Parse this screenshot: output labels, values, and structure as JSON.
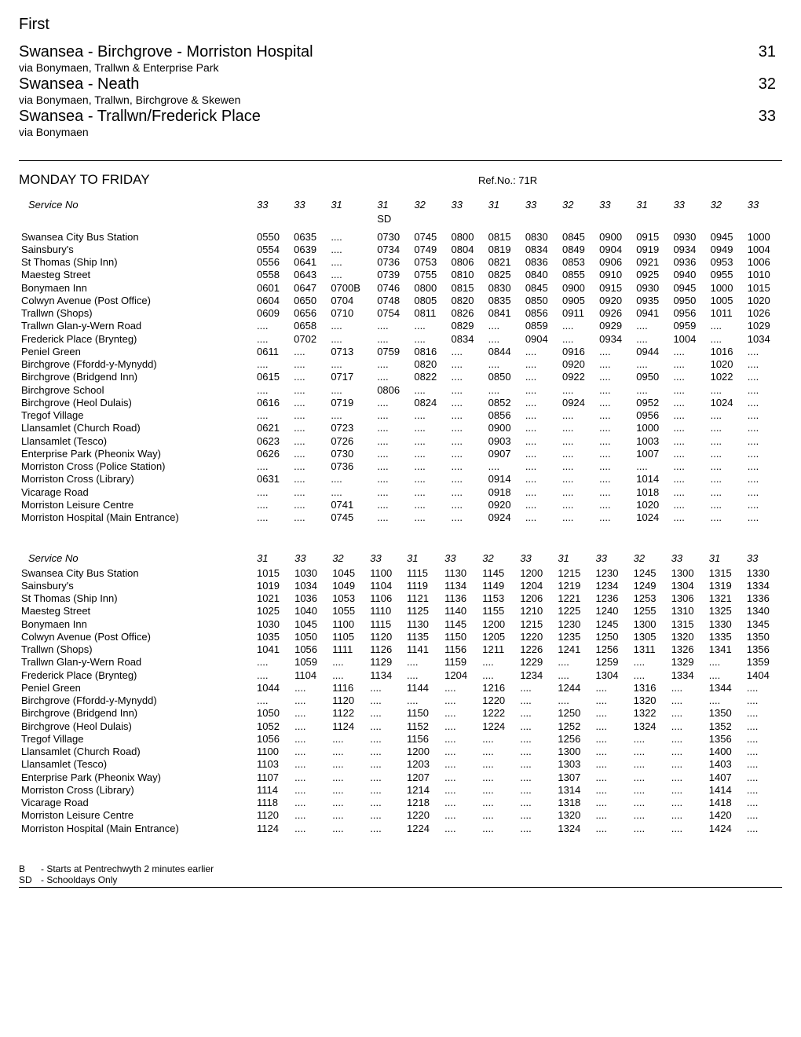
{
  "operator": "First",
  "routes": [
    {
      "name": "Swansea - Birchgrove - Morriston Hospital",
      "via": "via Bonymaen, Trallwn & Enterprise Park",
      "num": "31"
    },
    {
      "name": "Swansea - Neath",
      "via": "via Bonymaen, Trallwn, Birchgrove & Skewen",
      "num": "32"
    },
    {
      "name": "Swansea - Trallwn/Frederick Place",
      "via": "via Bonymaen",
      "num": "33"
    }
  ],
  "day_label": "MONDAY TO FRIDAY",
  "refno": "Ref.No.: 71R",
  "service_label": "Service No",
  "stops": [
    "Swansea City Bus Station",
    "Sainsbury's",
    "St Thomas (Ship Inn)",
    "Maesteg Street",
    "Bonymaen Inn",
    "Colwyn Avenue (Post Office)",
    "Trallwn (Shops)",
    "Trallwn Glan-y-Wern Road",
    "Frederick Place (Brynteg)",
    "Peniel Green",
    "Birchgrove (Ffordd-y-Mynydd)",
    "Birchgrove (Bridgend Inn)",
    "Birchgrove School",
    "Birchgrove (Heol Dulais)",
    "Tregof Village",
    "Llansamlet (Church Road)",
    "Llansamlet (Tesco)",
    "Enterprise Park (Pheonix Way)",
    "Morriston Cross (Police Station)",
    "Morriston Cross (Library)",
    "Vicarage Road",
    "Morriston Leisure Centre",
    "Morriston Hospital (Main Entrance)"
  ],
  "table1": {
    "services": [
      "33",
      "33",
      "31",
      "31",
      "32",
      "33",
      "31",
      "33",
      "32",
      "33",
      "31",
      "33",
      "32",
      "33"
    ],
    "notes": [
      "",
      "",
      "",
      "SD",
      "",
      "",
      "",
      "",
      "",
      "",
      "",
      "",
      "",
      ""
    ],
    "times": [
      [
        "0550",
        "0635",
        "....",
        "0730",
        "0745",
        "0800",
        "0815",
        "0830",
        "0845",
        "0900",
        "0915",
        "0930",
        "0945",
        "1000"
      ],
      [
        "0554",
        "0639",
        "....",
        "0734",
        "0749",
        "0804",
        "0819",
        "0834",
        "0849",
        "0904",
        "0919",
        "0934",
        "0949",
        "1004"
      ],
      [
        "0556",
        "0641",
        "....",
        "0736",
        "0753",
        "0806",
        "0821",
        "0836",
        "0853",
        "0906",
        "0921",
        "0936",
        "0953",
        "1006"
      ],
      [
        "0558",
        "0643",
        "....",
        "0739",
        "0755",
        "0810",
        "0825",
        "0840",
        "0855",
        "0910",
        "0925",
        "0940",
        "0955",
        "1010"
      ],
      [
        "0601",
        "0647",
        "0700B",
        "0746",
        "0800",
        "0815",
        "0830",
        "0845",
        "0900",
        "0915",
        "0930",
        "0945",
        "1000",
        "1015"
      ],
      [
        "0604",
        "0650",
        "0704",
        "0748",
        "0805",
        "0820",
        "0835",
        "0850",
        "0905",
        "0920",
        "0935",
        "0950",
        "1005",
        "1020"
      ],
      [
        "0609",
        "0656",
        "0710",
        "0754",
        "0811",
        "0826",
        "0841",
        "0856",
        "0911",
        "0926",
        "0941",
        "0956",
        "1011",
        "1026"
      ],
      [
        "....",
        "0658",
        "....",
        "....",
        "....",
        "0829",
        "....",
        "0859",
        "....",
        "0929",
        "....",
        "0959",
        "....",
        "1029"
      ],
      [
        "....",
        "0702",
        "....",
        "....",
        "....",
        "0834",
        "....",
        "0904",
        "....",
        "0934",
        "....",
        "1004",
        "....",
        "1034"
      ],
      [
        "0611",
        "....",
        "0713",
        "0759",
        "0816",
        "....",
        "0844",
        "....",
        "0916",
        "....",
        "0944",
        "....",
        "1016",
        "...."
      ],
      [
        "....",
        "....",
        "....",
        "....",
        "0820",
        "....",
        "....",
        "....",
        "0920",
        "....",
        "....",
        "....",
        "1020",
        "...."
      ],
      [
        "0615",
        "....",
        "0717",
        "....",
        "0822",
        "....",
        "0850",
        "....",
        "0922",
        "....",
        "0950",
        "....",
        "1022",
        "...."
      ],
      [
        "....",
        "....",
        "....",
        "0806",
        "....",
        "....",
        "....",
        "....",
        "....",
        "....",
        "....",
        "....",
        "....",
        "...."
      ],
      [
        "0616",
        "....",
        "0719",
        "....",
        "0824",
        "....",
        "0852",
        "....",
        "0924",
        "....",
        "0952",
        "....",
        "1024",
        "...."
      ],
      [
        "....",
        "....",
        "....",
        "....",
        "....",
        "....",
        "0856",
        "....",
        "....",
        "....",
        "0956",
        "....",
        "....",
        "...."
      ],
      [
        "0621",
        "....",
        "0723",
        "....",
        "....",
        "....",
        "0900",
        "....",
        "....",
        "....",
        "1000",
        "....",
        "....",
        "...."
      ],
      [
        "0623",
        "....",
        "0726",
        "....",
        "....",
        "....",
        "0903",
        "....",
        "....",
        "....",
        "1003",
        "....",
        "....",
        "...."
      ],
      [
        "0626",
        "....",
        "0730",
        "....",
        "....",
        "....",
        "0907",
        "....",
        "....",
        "....",
        "1007",
        "....",
        "....",
        "...."
      ],
      [
        "....",
        "....",
        "0736",
        "....",
        "....",
        "....",
        "....",
        "....",
        "....",
        "....",
        "....",
        "....",
        "....",
        "...."
      ],
      [
        "0631",
        "....",
        "....",
        "....",
        "....",
        "....",
        "0914",
        "....",
        "....",
        "....",
        "1014",
        "....",
        "....",
        "...."
      ],
      [
        "....",
        "....",
        "....",
        "....",
        "....",
        "....",
        "0918",
        "....",
        "....",
        "....",
        "1018",
        "....",
        "....",
        "...."
      ],
      [
        "....",
        "....",
        "0741",
        "....",
        "....",
        "....",
        "0920",
        "....",
        "....",
        "....",
        "1020",
        "....",
        "....",
        "...."
      ],
      [
        "....",
        "....",
        "0745",
        "....",
        "....",
        "....",
        "0924",
        "....",
        "....",
        "....",
        "1024",
        "....",
        "....",
        "...."
      ]
    ]
  },
  "stops2": [
    "Swansea City Bus Station",
    "Sainsbury's",
    "St Thomas (Ship Inn)",
    "Maesteg Street",
    "Bonymaen Inn",
    "Colwyn Avenue (Post Office)",
    "Trallwn (Shops)",
    "Trallwn Glan-y-Wern Road",
    "Frederick Place (Brynteg)",
    "Peniel Green",
    "Birchgrove (Ffordd-y-Mynydd)",
    "Birchgrove (Bridgend Inn)",
    "Birchgrove (Heol Dulais)",
    "Tregof Village",
    "Llansamlet (Church Road)",
    "Llansamlet (Tesco)",
    "Enterprise Park (Pheonix Way)",
    "Morriston Cross (Library)",
    "Vicarage Road",
    "Morriston Leisure Centre",
    "Morriston Hospital (Main Entrance)"
  ],
  "table2": {
    "services": [
      "31",
      "33",
      "32",
      "33",
      "31",
      "33",
      "32",
      "33",
      "31",
      "33",
      "32",
      "33",
      "31",
      "33"
    ],
    "times": [
      [
        "1015",
        "1030",
        "1045",
        "1100",
        "1115",
        "1130",
        "1145",
        "1200",
        "1215",
        "1230",
        "1245",
        "1300",
        "1315",
        "1330"
      ],
      [
        "1019",
        "1034",
        "1049",
        "1104",
        "1119",
        "1134",
        "1149",
        "1204",
        "1219",
        "1234",
        "1249",
        "1304",
        "1319",
        "1334"
      ],
      [
        "1021",
        "1036",
        "1053",
        "1106",
        "1121",
        "1136",
        "1153",
        "1206",
        "1221",
        "1236",
        "1253",
        "1306",
        "1321",
        "1336"
      ],
      [
        "1025",
        "1040",
        "1055",
        "1110",
        "1125",
        "1140",
        "1155",
        "1210",
        "1225",
        "1240",
        "1255",
        "1310",
        "1325",
        "1340"
      ],
      [
        "1030",
        "1045",
        "1100",
        "1115",
        "1130",
        "1145",
        "1200",
        "1215",
        "1230",
        "1245",
        "1300",
        "1315",
        "1330",
        "1345"
      ],
      [
        "1035",
        "1050",
        "1105",
        "1120",
        "1135",
        "1150",
        "1205",
        "1220",
        "1235",
        "1250",
        "1305",
        "1320",
        "1335",
        "1350"
      ],
      [
        "1041",
        "1056",
        "1111",
        "1126",
        "1141",
        "1156",
        "1211",
        "1226",
        "1241",
        "1256",
        "1311",
        "1326",
        "1341",
        "1356"
      ],
      [
        "....",
        "1059",
        "....",
        "1129",
        "....",
        "1159",
        "....",
        "1229",
        "....",
        "1259",
        "....",
        "1329",
        "....",
        "1359"
      ],
      [
        "....",
        "1104",
        "....",
        "1134",
        "....",
        "1204",
        "....",
        "1234",
        "....",
        "1304",
        "....",
        "1334",
        "....",
        "1404"
      ],
      [
        "1044",
        "....",
        "1116",
        "....",
        "1144",
        "....",
        "1216",
        "....",
        "1244",
        "....",
        "1316",
        "....",
        "1344",
        "...."
      ],
      [
        "....",
        "....",
        "1120",
        "....",
        "....",
        "....",
        "1220",
        "....",
        "....",
        "....",
        "1320",
        "....",
        "....",
        "...."
      ],
      [
        "1050",
        "....",
        "1122",
        "....",
        "1150",
        "....",
        "1222",
        "....",
        "1250",
        "....",
        "1322",
        "....",
        "1350",
        "...."
      ],
      [
        "1052",
        "....",
        "1124",
        "....",
        "1152",
        "....",
        "1224",
        "....",
        "1252",
        "....",
        "1324",
        "....",
        "1352",
        "...."
      ],
      [
        "1056",
        "....",
        "....",
        "....",
        "1156",
        "....",
        "....",
        "....",
        "1256",
        "....",
        "....",
        "....",
        "1356",
        "...."
      ],
      [
        "1100",
        "....",
        "....",
        "....",
        "1200",
        "....",
        "....",
        "....",
        "1300",
        "....",
        "....",
        "....",
        "1400",
        "...."
      ],
      [
        "1103",
        "....",
        "....",
        "....",
        "1203",
        "....",
        "....",
        "....",
        "1303",
        "....",
        "....",
        "....",
        "1403",
        "...."
      ],
      [
        "1107",
        "....",
        "....",
        "....",
        "1207",
        "....",
        "....",
        "....",
        "1307",
        "....",
        "....",
        "....",
        "1407",
        "...."
      ],
      [
        "1114",
        "....",
        "....",
        "....",
        "1214",
        "....",
        "....",
        "....",
        "1314",
        "....",
        "....",
        "....",
        "1414",
        "...."
      ],
      [
        "1118",
        "....",
        "....",
        "....",
        "1218",
        "....",
        "....",
        "....",
        "1318",
        "....",
        "....",
        "....",
        "1418",
        "...."
      ],
      [
        "1120",
        "....",
        "....",
        "....",
        "1220",
        "....",
        "....",
        "....",
        "1320",
        "....",
        "....",
        "....",
        "1420",
        "...."
      ],
      [
        "1124",
        "....",
        "....",
        "....",
        "1224",
        "....",
        "....",
        "....",
        "1324",
        "....",
        "....",
        "....",
        "1424",
        "...."
      ]
    ]
  },
  "footnotes": [
    {
      "code": "B",
      "text": "- Starts at Pentrechwyth 2 minutes earlier"
    },
    {
      "code": "SD",
      "text": "- Schooldays Only"
    }
  ]
}
